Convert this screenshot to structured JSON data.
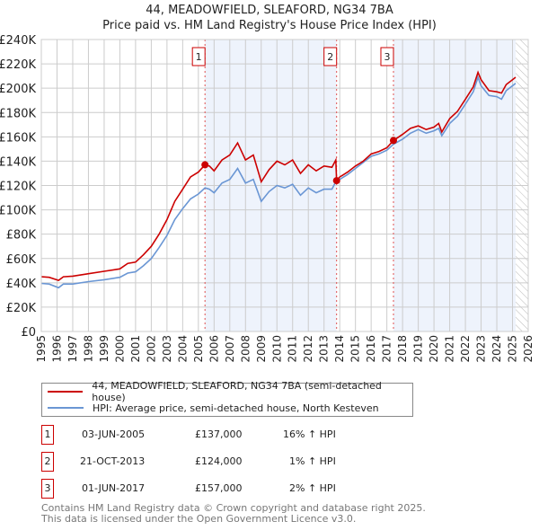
{
  "title": "44, MEADOWFIELD, SLEAFORD, NG34 7BA",
  "subtitle": "Price paid vs. HM Land Registry's House Price Index (HPI)",
  "chart_data": {
    "type": "line",
    "title": "44, MEADOWFIELD, SLEAFORD, NG34 7BA",
    "subtitle": "Price paid vs. HM Land Registry's House Price Index (HPI)",
    "xlim": [
      1995,
      2026
    ],
    "ylim": [
      0,
      240000
    ],
    "x_ticks": [
      "1995",
      "1996",
      "1997",
      "1998",
      "1999",
      "2000",
      "2001",
      "2002",
      "2003",
      "2004",
      "2005",
      "2006",
      "2007",
      "2008",
      "2009",
      "2010",
      "2011",
      "2012",
      "2013",
      "2014",
      "2015",
      "2016",
      "2017",
      "2018",
      "2019",
      "2020",
      "2021",
      "2022",
      "2023",
      "2024",
      "2025",
      "2026"
    ],
    "y_ticks": [
      "£0",
      "£20K",
      "£40K",
      "£60K",
      "£80K",
      "£100K",
      "£120K",
      "£140K",
      "£160K",
      "£180K",
      "£200K",
      "£220K",
      "£240K"
    ],
    "grid": true,
    "legend_position": "below",
    "series": [
      {
        "name": "44, MEADOWFIELD, SLEAFORD, NG34 7BA (semi-detached house)",
        "color": "#cc0000",
        "x": [
          1995,
          1995.5,
          1996.1,
          1996.4,
          1997,
          1998,
          1999,
          2000,
          2000.5,
          2001,
          2001.5,
          2002,
          2002.5,
          2003,
          2003.5,
          2004,
          2004.5,
          2005,
          2005.42,
          2005.7,
          2006,
          2006.5,
          2007,
          2007.5,
          2008,
          2008.5,
          2009,
          2009.5,
          2010,
          2010.5,
          2011,
          2011.5,
          2012,
          2012.5,
          2013,
          2013.5,
          2013.75,
          2013.8,
          2014,
          2014.5,
          2015,
          2015.5,
          2016,
          2016.5,
          2017,
          2017.42,
          2018,
          2018.5,
          2019,
          2019.5,
          2020,
          2020.3,
          2020.5,
          2021,
          2021.5,
          2022,
          2022.5,
          2022.8,
          2023,
          2023.5,
          2024,
          2024.3,
          2024.6,
          2025,
          2025.2
        ],
        "y": [
          45000,
          44500,
          42000,
          45000,
          45500,
          47500,
          49500,
          51500,
          56000,
          57000,
          63000,
          70000,
          80000,
          92000,
          107000,
          117000,
          127000,
          131000,
          137000,
          136000,
          132000,
          141000,
          145000,
          155000,
          141000,
          145000,
          123000,
          133000,
          140000,
          137000,
          141000,
          130000,
          137000,
          132000,
          136000,
          135000,
          141000,
          124000,
          127000,
          131000,
          136000,
          140000,
          146000,
          148000,
          151000,
          157000,
          162000,
          167000,
          169000,
          166000,
          168000,
          171000,
          164000,
          175000,
          181000,
          191000,
          201000,
          213000,
          207000,
          198000,
          197000,
          196000,
          203000,
          207000,
          209000
        ]
      },
      {
        "name": "HPI: Average price, semi-detached house, North Kesteven",
        "color": "#6a96d4",
        "x": [
          1995,
          1995.5,
          1996.1,
          1996.4,
          1997,
          1998,
          1999,
          2000,
          2000.5,
          2001,
          2001.5,
          2002,
          2002.5,
          2003,
          2003.5,
          2004,
          2004.5,
          2005,
          2005.42,
          2005.7,
          2006,
          2006.5,
          2007,
          2007.5,
          2008,
          2008.5,
          2009,
          2009.5,
          2010,
          2010.5,
          2011,
          2011.5,
          2012,
          2012.5,
          2013,
          2013.5,
          2013.75,
          2013.8,
          2014,
          2014.5,
          2015,
          2015.5,
          2016,
          2016.5,
          2017,
          2017.42,
          2018,
          2018.5,
          2019,
          2019.5,
          2020,
          2020.3,
          2020.5,
          2021,
          2021.5,
          2022,
          2022.5,
          2022.8,
          2023,
          2023.5,
          2024,
          2024.3,
          2024.6,
          2025,
          2025.2
        ],
        "y": [
          39500,
          39000,
          36000,
          39000,
          39000,
          41000,
          42500,
          44500,
          48000,
          49000,
          54000,
          60000,
          69000,
          79000,
          92000,
          101000,
          109000,
          113000,
          118000,
          117000,
          114000,
          122000,
          125000,
          134000,
          122000,
          125000,
          107000,
          115000,
          120000,
          118000,
          121000,
          112000,
          118000,
          114000,
          117000,
          117000,
          123000,
          122000,
          125000,
          129000,
          134000,
          139000,
          144000,
          146000,
          149000,
          154000,
          158000,
          163000,
          166000,
          163000,
          165000,
          167000,
          161000,
          171000,
          177000,
          187000,
          197000,
          209000,
          202000,
          194000,
          193000,
          191000,
          198000,
          202000,
          204000
        ]
      }
    ],
    "sales": [
      {
        "label": "1",
        "x": 2005.42,
        "y": 137000,
        "date": "03-JUN-2005",
        "price": "£137,000",
        "hpi": "16% ↑ HPI"
      },
      {
        "label": "2",
        "x": 2013.8,
        "y": 124000,
        "date": "21-OCT-2013",
        "price": "£124,000",
        "hpi": "1% ↑ HPI"
      },
      {
        "label": "3",
        "x": 2017.42,
        "y": 157000,
        "date": "01-JUN-2017",
        "price": "£157,000",
        "hpi": "2% ↑ HPI"
      }
    ],
    "shaded_ranges": [
      [
        2005.42,
        2013.8
      ],
      [
        2017.42,
        2025.2
      ]
    ],
    "forecast_start": 2025.2
  },
  "footer": {
    "line1": "Contains HM Land Registry data © Crown copyright and database right 2025.",
    "line2": "This data is licensed under the Open Government Licence v3.0."
  }
}
